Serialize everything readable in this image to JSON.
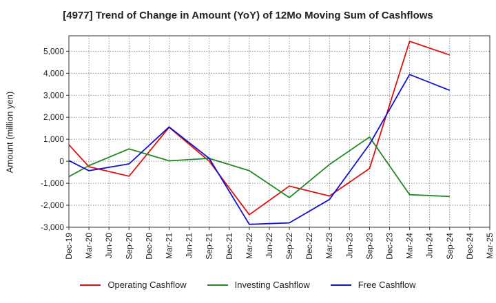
{
  "chart_data": {
    "type": "line",
    "title": "[4977]  Trend of Change in Amount (YoY) of 12Mo Moving Sum of Cashflows",
    "xlabel": "",
    "ylabel": "Amount (million yen)",
    "categories": [
      "Dec-19",
      "Mar-20",
      "Jun-20",
      "Sep-20",
      "Dec-20",
      "Mar-21",
      "Jun-21",
      "Sep-21",
      "Dec-21",
      "Mar-22",
      "Jun-22",
      "Sep-22",
      "Dec-22",
      "Mar-23",
      "Jun-23",
      "Sep-23",
      "Dec-23",
      "Mar-24",
      "Jun-24",
      "Sep-24",
      "Dec-24",
      "Mar-25"
    ],
    "ylim": [
      -3000,
      5700
    ],
    "yticks": [
      -3000,
      -2000,
      -1000,
      0,
      1000,
      2000,
      3000,
      4000,
      5000
    ],
    "ytick_labels": [
      "-3,000",
      "-2,000",
      "-1,000",
      "0",
      "1,000",
      "2,000",
      "3,000",
      "4,000",
      "5,000"
    ],
    "grid": true,
    "legend_position": "bottom",
    "series": [
      {
        "name": "Operating Cashflow",
        "color": "#dd1111",
        "values": [
          750,
          -250,
          null,
          -680,
          null,
          1540,
          null,
          0,
          null,
          -2430,
          null,
          -1130,
          null,
          -1580,
          null,
          -330,
          null,
          5450,
          null,
          4830,
          null,
          null
        ]
      },
      {
        "name": "Investing Cashflow",
        "color": "#228822",
        "values": [
          -700,
          -200,
          null,
          560,
          null,
          20,
          null,
          130,
          null,
          -430,
          null,
          -1650,
          null,
          -150,
          null,
          1100,
          null,
          -1520,
          null,
          -1600,
          null,
          null
        ]
      },
      {
        "name": "Free Cashflow",
        "color": "#1111cc",
        "values": [
          30,
          -430,
          null,
          -120,
          null,
          1560,
          null,
          130,
          null,
          -2870,
          null,
          -2800,
          null,
          -1740,
          null,
          770,
          null,
          3940,
          null,
          3220,
          null,
          null
        ]
      }
    ]
  }
}
